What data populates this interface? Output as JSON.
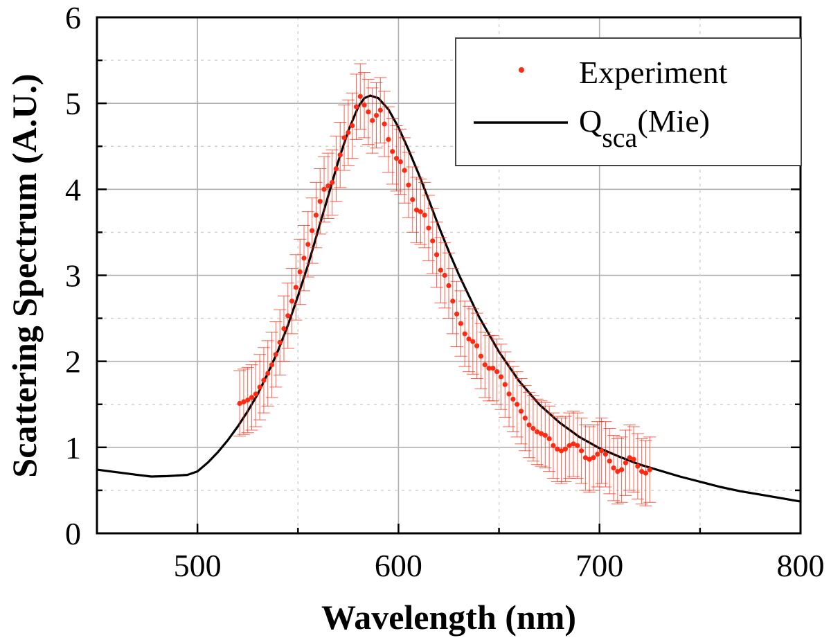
{
  "chart_data": {
    "type": "scatter",
    "title": "",
    "xlabel": "Wavelength (nm)",
    "ylabel": "Scattering Spectrum (A.U.)",
    "xlim": [
      450,
      800
    ],
    "ylim": [
      0,
      6
    ],
    "xticks": [
      500,
      600,
      700,
      800
    ],
    "xminor": [
      550,
      650,
      750
    ],
    "yticks": [
      0,
      1,
      2,
      3,
      4,
      5,
      6
    ],
    "yminor": [
      0.5,
      1.5,
      2.5,
      3.5,
      4.5,
      5.5
    ],
    "grid": true,
    "legend_position": "top-right",
    "colors": {
      "experiment": "#ff2a12",
      "mie": "#000000",
      "grid": "#b0b0b0"
    },
    "legend": {
      "experiment_label": "Experiment",
      "mie_label_main": "Q",
      "mie_label_sub": "sca",
      "mie_label_rest": "(Mie)"
    },
    "series": [
      {
        "name": "Experiment",
        "kind": "scatter_with_errorbars",
        "error": 0.38,
        "x": [
          521,
          523,
          525,
          527,
          529,
          531,
          533,
          535,
          537,
          539,
          541,
          543,
          545,
          547,
          549,
          551,
          553,
          555,
          557,
          559,
          561,
          563,
          565,
          567,
          569,
          571,
          573,
          575,
          577,
          579,
          581,
          583,
          585,
          587,
          589,
          591,
          593,
          595,
          597,
          599,
          601,
          603,
          605,
          607,
          609,
          611,
          613,
          615,
          617,
          619,
          621,
          623,
          625,
          627,
          629,
          631,
          633,
          635,
          637,
          639,
          641,
          643,
          645,
          647,
          649,
          651,
          653,
          655,
          657,
          659,
          661,
          663,
          665,
          667,
          669,
          671,
          673,
          675,
          677,
          679,
          681,
          683,
          685,
          687,
          689,
          691,
          693,
          695,
          697,
          699,
          701,
          703,
          705,
          707,
          709,
          711,
          713,
          715,
          717,
          719,
          721,
          723,
          725
        ],
        "y": [
          1.51,
          1.53,
          1.55,
          1.58,
          1.62,
          1.7,
          1.78,
          1.86,
          1.96,
          2.08,
          2.22,
          2.38,
          2.53,
          2.7,
          2.86,
          3.04,
          3.2,
          3.36,
          3.52,
          3.7,
          3.86,
          4.0,
          4.04,
          4.08,
          4.24,
          4.4,
          4.6,
          4.66,
          4.74,
          4.96,
          5.08,
          4.98,
          4.9,
          4.8,
          4.86,
          4.92,
          4.76,
          4.58,
          4.44,
          4.36,
          4.32,
          4.22,
          4.05,
          3.88,
          3.76,
          3.74,
          3.7,
          3.55,
          3.4,
          3.24,
          3.06,
          3.0,
          2.88,
          2.7,
          2.55,
          2.44,
          2.32,
          2.26,
          2.23,
          2.18,
          2.06,
          1.96,
          1.92,
          1.92,
          1.88,
          1.82,
          1.73,
          1.62,
          1.56,
          1.5,
          1.42,
          1.34,
          1.26,
          1.22,
          1.18,
          1.16,
          1.14,
          1.1,
          1.02,
          0.98,
          0.96,
          0.98,
          1.02,
          1.04,
          1.02,
          0.96,
          0.88,
          0.86,
          0.88,
          0.92,
          0.96,
          0.92,
          0.84,
          0.76,
          0.72,
          0.74,
          0.82,
          0.88,
          0.86,
          0.78,
          0.72,
          0.7,
          0.74
        ]
      },
      {
        "name": "Qsca(Mie)",
        "kind": "line",
        "x": [
          450,
          460,
          470,
          477,
          485,
          495,
          500,
          505,
          510,
          515,
          520,
          525,
          530,
          535,
          540,
          545,
          550,
          555,
          560,
          565,
          570,
          575,
          580,
          583,
          586,
          590,
          595,
          600,
          605,
          610,
          615,
          620,
          625,
          630,
          640,
          650,
          660,
          670,
          680,
          690,
          700,
          710,
          720,
          730,
          740,
          750,
          760,
          770,
          780,
          790,
          800
        ],
        "y": [
          0.74,
          0.71,
          0.68,
          0.66,
          0.665,
          0.68,
          0.72,
          0.82,
          0.94,
          1.08,
          1.24,
          1.42,
          1.62,
          1.86,
          2.12,
          2.42,
          2.76,
          3.12,
          3.52,
          3.92,
          4.32,
          4.68,
          4.96,
          5.06,
          5.09,
          5.06,
          4.93,
          4.72,
          4.46,
          4.18,
          3.88,
          3.57,
          3.28,
          3.01,
          2.52,
          2.11,
          1.77,
          1.5,
          1.29,
          1.12,
          0.99,
          0.89,
          0.8,
          0.73,
          0.66,
          0.6,
          0.54,
          0.49,
          0.45,
          0.41,
          0.37
        ]
      }
    ]
  }
}
